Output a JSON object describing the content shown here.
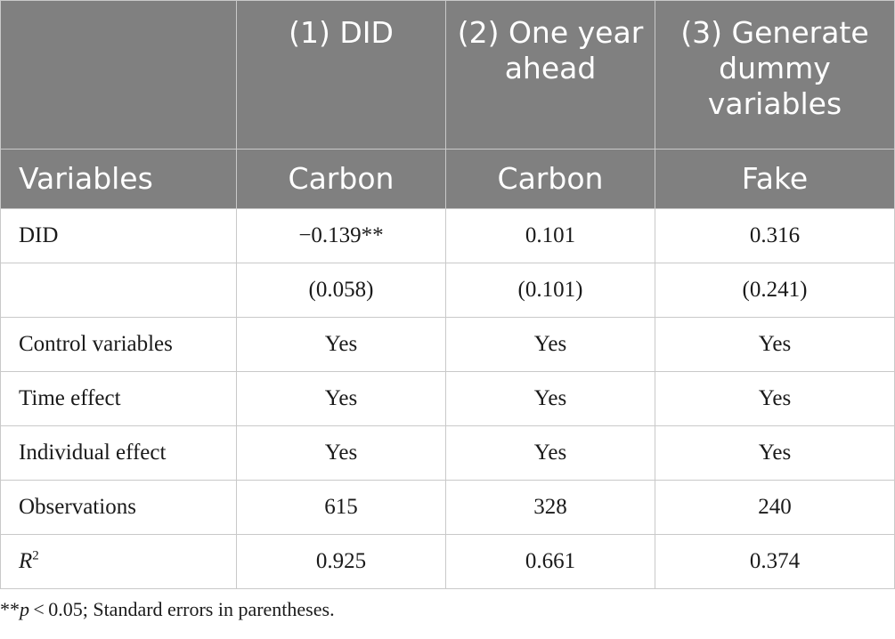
{
  "header": {
    "row1": [
      "",
      "(1) DID",
      "(2) One year ahead",
      "(3) Generate dummy variables"
    ],
    "row2": [
      "Variables",
      "Carbon",
      "Carbon",
      "Fake"
    ]
  },
  "rows": [
    {
      "label": "DID",
      "values": [
        "−0.139**",
        "0.101",
        "0.316"
      ]
    },
    {
      "label": "",
      "values": [
        "(0.058)",
        "(0.101)",
        "(0.241)"
      ]
    },
    {
      "label": "Control variables",
      "values": [
        "Yes",
        "Yes",
        "Yes"
      ]
    },
    {
      "label": "Time effect",
      "values": [
        "Yes",
        "Yes",
        "Yes"
      ]
    },
    {
      "label": "Individual effect",
      "values": [
        "Yes",
        "Yes",
        "Yes"
      ]
    },
    {
      "label": "Observations",
      "values": [
        "615",
        "328",
        "240"
      ]
    },
    {
      "label_base": "R",
      "label_sup": "2",
      "values": [
        "0.925",
        "0.661",
        "0.374"
      ]
    }
  ],
  "footnote": {
    "stars": "**",
    "p": "p",
    "rest": " < 0.05; Standard errors in parentheses."
  },
  "colors": {
    "header_bg": "#808080",
    "header_text": "#ffffff",
    "grid": "#c9c9c9"
  }
}
